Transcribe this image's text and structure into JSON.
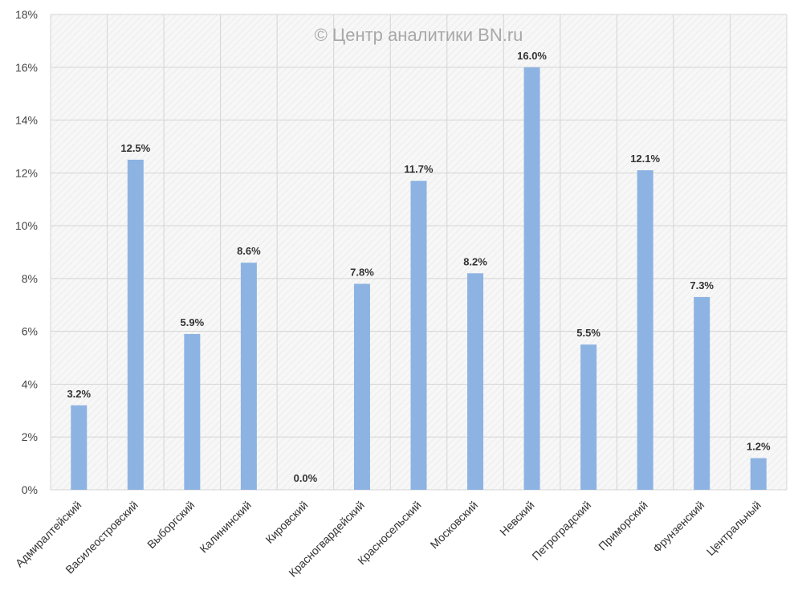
{
  "chart_data": {
    "type": "bar",
    "title": "",
    "watermark": "© Центр аналитики BN.ru",
    "xlabel": "",
    "ylabel": "",
    "ylim": [
      0,
      18
    ],
    "yticks": [
      0,
      2,
      4,
      6,
      8,
      10,
      12,
      14,
      16,
      18
    ],
    "ytick_labels": [
      "0%",
      "2%",
      "4%",
      "6%",
      "8%",
      "10%",
      "12%",
      "14%",
      "16%",
      "18%"
    ],
    "grid": true,
    "bar_color": "#8db3e2",
    "categories": [
      "Адмиралтейский",
      "Василеостровский",
      "Выборгский",
      "Калининский",
      "Кировский",
      "Красногвардейский",
      "Красносельский",
      "Московский",
      "Невский",
      "Петроградский",
      "Приморский",
      "Фрунзенский",
      "Центральный"
    ],
    "values": [
      3.2,
      12.5,
      5.9,
      8.6,
      0.0,
      7.8,
      11.7,
      8.2,
      16.0,
      5.5,
      12.1,
      7.3,
      1.2
    ],
    "data_labels": [
      "3.2%",
      "12.5%",
      "5.9%",
      "8.6%",
      "0.0%",
      "7.8%",
      "11.7%",
      "8.2%",
      "16.0%",
      "5.5%",
      "12.1%",
      "7.3%",
      "1.2%"
    ]
  }
}
